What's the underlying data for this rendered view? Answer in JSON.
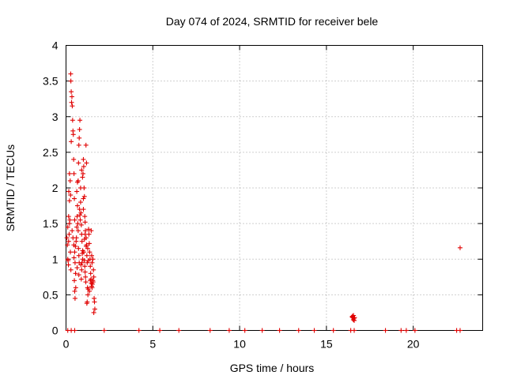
{
  "chart_data": {
    "type": "scatter",
    "title": "Day 074 of 2024, SRMTID for receiver bele",
    "xlabel": "GPS time / hours",
    "ylabel": "SRMTID / TECUs",
    "xlim": [
      0,
      24
    ],
    "ylim": [
      0,
      4
    ],
    "xticks": [
      0,
      5,
      10,
      15,
      20
    ],
    "xtick_labels": [
      "0",
      "5",
      "10",
      "15",
      "20"
    ],
    "yticks": [
      0,
      0.5,
      1,
      1.5,
      2,
      2.5,
      3,
      3.5,
      4
    ],
    "ytick_labels": [
      "0",
      "0.5",
      "1",
      "1.5",
      "2",
      "2.5",
      "3",
      "3.5",
      "4"
    ],
    "grid": true,
    "marker": "+",
    "color": "#e00000",
    "series": [
      {
        "name": "SRMTID",
        "points": [
          [
            0.05,
            1.3
          ],
          [
            0.08,
            1.2
          ],
          [
            0.1,
            1.0
          ],
          [
            0.12,
            0.98
          ],
          [
            0.15,
            1.25
          ],
          [
            0.18,
            1.35
          ],
          [
            0.2,
            1.5
          ],
          [
            0.22,
            1.55
          ],
          [
            0.25,
            1.1
          ],
          [
            0.28,
            0.85
          ],
          [
            0.1,
            1.45
          ],
          [
            0.14,
            0.92
          ],
          [
            0.16,
            1.95
          ],
          [
            0.2,
            2.2
          ],
          [
            0.24,
            2.1
          ],
          [
            0.26,
            1.9
          ],
          [
            0.3,
            2.65
          ],
          [
            0.32,
            3.2
          ],
          [
            0.34,
            3.28
          ],
          [
            0.3,
            3.35
          ],
          [
            0.28,
            3.5
          ],
          [
            0.27,
            3.6
          ],
          [
            0.36,
            3.15
          ],
          [
            0.38,
            2.95
          ],
          [
            0.4,
            2.8
          ],
          [
            0.42,
            2.75
          ],
          [
            0.44,
            2.4
          ],
          [
            0.46,
            2.2
          ],
          [
            0.48,
            1.85
          ],
          [
            0.5,
            1.55
          ],
          [
            0.35,
            1.4
          ],
          [
            0.4,
            1.3
          ],
          [
            0.45,
            1.2
          ],
          [
            0.5,
            1.1
          ],
          [
            0.52,
            0.95
          ],
          [
            0.55,
            0.8
          ],
          [
            0.48,
            0.7
          ],
          [
            0.5,
            0.55
          ],
          [
            0.52,
            0.45
          ],
          [
            0.56,
            0.6
          ],
          [
            0.58,
            1.25
          ],
          [
            0.6,
            1.3
          ],
          [
            0.62,
            1.45
          ],
          [
            0.64,
            1.6
          ],
          [
            0.66,
            1.75
          ],
          [
            0.68,
            1.5
          ],
          [
            0.7,
            1.4
          ],
          [
            0.72,
            1.15
          ],
          [
            0.74,
            1.05
          ],
          [
            0.76,
            0.95
          ],
          [
            0.7,
            2.1
          ],
          [
            0.72,
            2.35
          ],
          [
            0.74,
            2.6
          ],
          [
            0.76,
            2.7
          ],
          [
            0.78,
            2.82
          ],
          [
            0.8,
            2.95
          ],
          [
            0.78,
            1.7
          ],
          [
            0.8,
            1.62
          ],
          [
            0.82,
            1.55
          ],
          [
            0.84,
            1.8
          ],
          [
            0.86,
            1.65
          ],
          [
            0.88,
            1.48
          ],
          [
            0.9,
            1.35
          ],
          [
            0.92,
            1.25
          ],
          [
            0.94,
            1.08
          ],
          [
            0.96,
            1.0
          ],
          [
            0.9,
            0.85
          ],
          [
            0.88,
            0.72
          ],
          [
            0.92,
            0.95
          ],
          [
            0.95,
            2.15
          ],
          [
            0.98,
            2.2
          ],
          [
            1.0,
            2.4
          ],
          [
            1.02,
            2.3
          ],
          [
            1.04,
            2.0
          ],
          [
            1.06,
            1.88
          ],
          [
            1.08,
            1.6
          ],
          [
            1.1,
            1.52
          ],
          [
            1.12,
            1.4
          ],
          [
            1.0,
            1.85
          ],
          [
            1.02,
            1.1
          ],
          [
            1.05,
            0.98
          ],
          [
            1.08,
            0.9
          ],
          [
            1.1,
            0.82
          ],
          [
            1.12,
            0.75
          ],
          [
            1.14,
            0.68
          ],
          [
            1.16,
            1.3
          ],
          [
            1.18,
            1.2
          ],
          [
            1.2,
            1.05
          ],
          [
            1.22,
            0.95
          ],
          [
            1.24,
            0.6
          ],
          [
            1.15,
            2.6
          ],
          [
            1.18,
            2.35
          ],
          [
            1.2,
            0.38
          ],
          [
            1.22,
            0.4
          ],
          [
            1.26,
            0.5
          ],
          [
            1.28,
            0.58
          ],
          [
            1.3,
            1.42
          ],
          [
            1.32,
            1.35
          ],
          [
            1.34,
            1.22
          ],
          [
            1.36,
            1.1
          ],
          [
            1.38,
            1.0
          ],
          [
            1.4,
            0.9
          ],
          [
            1.42,
            0.8
          ],
          [
            1.44,
            0.72
          ],
          [
            1.46,
            0.66
          ],
          [
            1.48,
            0.62
          ],
          [
            1.5,
            0.6
          ],
          [
            1.52,
            0.65
          ],
          [
            1.54,
            0.7
          ],
          [
            1.56,
            0.68
          ],
          [
            1.45,
            1.4
          ],
          [
            1.48,
            1.05
          ],
          [
            1.5,
            0.95
          ],
          [
            1.55,
            1.0
          ],
          [
            1.58,
            0.85
          ],
          [
            1.6,
            0.75
          ],
          [
            1.62,
            0.45
          ],
          [
            1.64,
            0.4
          ],
          [
            1.66,
            0.3
          ],
          [
            1.6,
            0.25
          ],
          [
            0.2,
            1.82
          ],
          [
            0.15,
            1.6
          ],
          [
            0.62,
            1.95
          ],
          [
            0.66,
            2.08
          ],
          [
            0.84,
            2.0
          ],
          [
            0.9,
            2.25
          ],
          [
            1.0,
            1.7
          ],
          [
            1.1,
            1.35
          ],
          [
            1.25,
            1.15
          ],
          [
            1.35,
            0.55
          ],
          [
            0.46,
            1.02
          ],
          [
            0.54,
            1.18
          ],
          [
            0.64,
            0.88
          ],
          [
            0.74,
            0.78
          ],
          [
            0.86,
            0.92
          ],
          [
            0.96,
            1.12
          ],
          [
            1.06,
            1.28
          ],
          [
            1.16,
            1.18
          ],
          [
            1.28,
            0.98
          ],
          [
            1.4,
            0.7
          ],
          [
            16.5,
            0.2
          ],
          [
            16.52,
            0.18
          ],
          [
            16.55,
            0.15
          ],
          [
            16.58,
            0.17
          ],
          [
            16.6,
            0.14
          ],
          [
            16.62,
            0.18
          ],
          [
            16.48,
            0.19
          ],
          [
            16.56,
            0.21
          ],
          [
            22.7,
            1.16
          ],
          [
            0.1,
            0.0
          ],
          [
            0.3,
            0.0
          ],
          [
            0.5,
            0.0
          ],
          [
            2.2,
            0.0
          ],
          [
            4.2,
            0.0
          ],
          [
            5.4,
            0.0
          ],
          [
            6.5,
            0.0
          ],
          [
            8.3,
            0.0
          ],
          [
            9.4,
            0.0
          ],
          [
            10.3,
            0.0
          ],
          [
            11.3,
            0.0
          ],
          [
            12.3,
            0.0
          ],
          [
            13.4,
            0.0
          ],
          [
            14.3,
            0.0
          ],
          [
            15.4,
            0.0
          ],
          [
            16.4,
            0.0
          ],
          [
            16.6,
            0.0
          ],
          [
            18.4,
            0.0
          ],
          [
            19.3,
            0.0
          ],
          [
            19.6,
            0.0
          ],
          [
            20.1,
            0.0
          ],
          [
            22.5,
            0.0
          ],
          [
            22.7,
            0.0
          ]
        ]
      }
    ]
  }
}
